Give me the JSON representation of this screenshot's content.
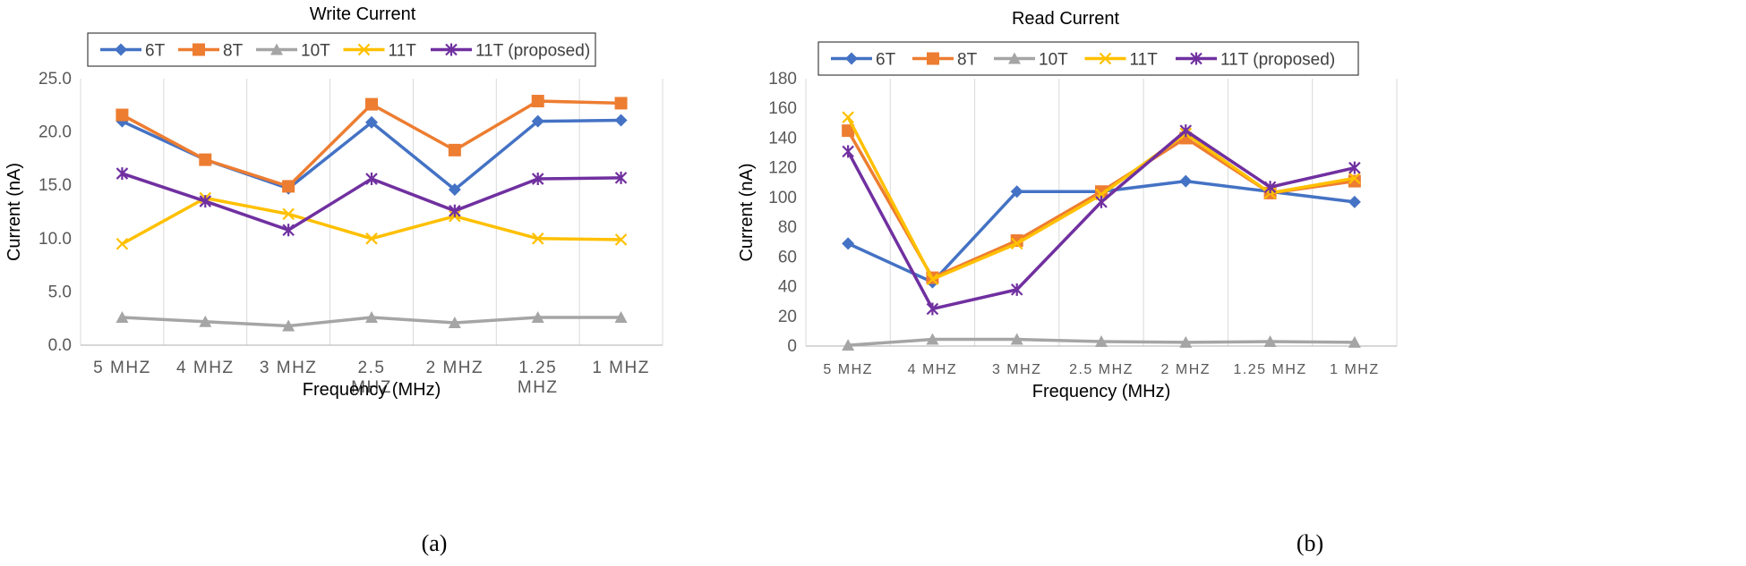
{
  "figure": {
    "caption_a": "(a)",
    "caption_b": "(b)"
  },
  "series_style": [
    {
      "name": "6T",
      "color": "#4472C4",
      "marker": "diamond"
    },
    {
      "name": "8T",
      "color": "#ED7D31",
      "marker": "square"
    },
    {
      "name": "10T",
      "color": "#A5A5A5",
      "marker": "triangle"
    },
    {
      "name": "11T",
      "color": "#FFC000",
      "marker": "x"
    },
    {
      "name": "11T (proposed)",
      "color": "#7030A0",
      "marker": "star"
    }
  ],
  "chart_data": [
    {
      "type": "line",
      "title": "Write Current",
      "xlabel": "Frequency (MHz)",
      "ylabel": "Current (nA)",
      "categories": [
        "5 MHZ",
        "4 MHZ",
        "3 MHZ",
        "2.5 MHZ",
        "2 MHZ",
        "1.25 MHZ",
        "1 MHZ"
      ],
      "ylim": [
        0,
        25
      ],
      "yticks": [
        "0.0",
        "5.0",
        "10.0",
        "15.0",
        "20.0",
        "25.0"
      ],
      "grid": "vertical",
      "legend": "top",
      "series": [
        {
          "name": "6T",
          "values": [
            21.0,
            17.4,
            14.7,
            20.9,
            14.6,
            21.0,
            21.1
          ]
        },
        {
          "name": "8T",
          "values": [
            21.6,
            17.4,
            14.9,
            22.6,
            18.3,
            22.9,
            22.7
          ]
        },
        {
          "name": "10T",
          "values": [
            2.6,
            2.2,
            1.8,
            2.6,
            2.1,
            2.6,
            2.6
          ]
        },
        {
          "name": "11T",
          "values": [
            9.5,
            13.8,
            12.3,
            10.0,
            12.1,
            10.0,
            9.9
          ]
        },
        {
          "name": "11T (proposed)",
          "values": [
            16.1,
            13.5,
            10.8,
            15.6,
            12.6,
            15.6,
            15.7
          ]
        }
      ]
    },
    {
      "type": "line",
      "title": "Read Current",
      "xlabel": "Frequency (MHz)",
      "ylabel": "Current (nA)",
      "categories": [
        "5 MHZ",
        "4 MHZ",
        "3 MHZ",
        "2.5 MHZ",
        "2 MHZ",
        "1.25 MHZ",
        "1 MHZ"
      ],
      "ylim": [
        0,
        180
      ],
      "yticks": [
        "0",
        "20",
        "40",
        "60",
        "80",
        "100",
        "120",
        "140",
        "160",
        "180"
      ],
      "grid": "vertical",
      "legend": "top",
      "series": [
        {
          "name": "6T",
          "values": [
            69,
            43,
            104,
            104,
            111,
            104,
            97
          ]
        },
        {
          "name": "8T",
          "values": [
            145,
            46,
            71,
            104,
            140,
            103,
            111
          ]
        },
        {
          "name": "10T",
          "values": [
            0.5,
            4.5,
            4.5,
            3,
            2.5,
            3,
            2.5
          ]
        },
        {
          "name": "11T",
          "values": [
            154,
            45,
            69,
            102,
            143,
            103,
            113
          ]
        },
        {
          "name": "11T (proposed)",
          "values": [
            131,
            25,
            38,
            97,
            145,
            107,
            120
          ]
        }
      ]
    }
  ]
}
